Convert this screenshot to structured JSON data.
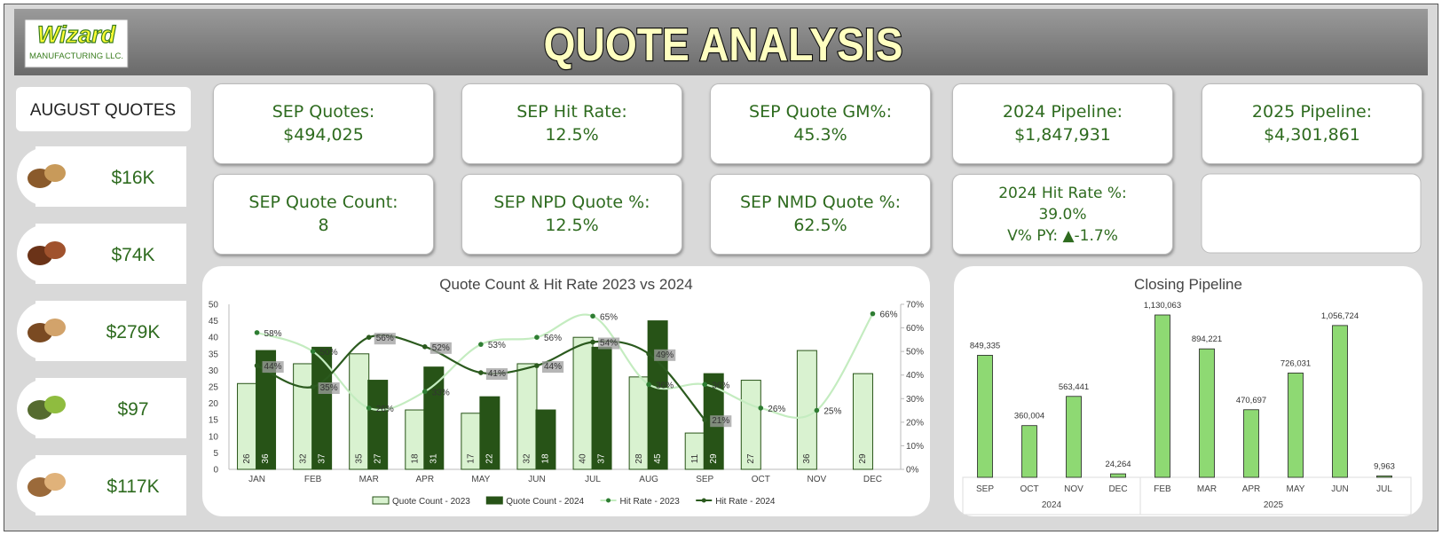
{
  "header": {
    "title": "QUOTE ANALYSIS",
    "logo_name": "Wizard",
    "logo_sub": "MANUFACTURING LLC."
  },
  "side_panel": {
    "title": "AUGUST QUOTES",
    "items": [
      "$16K",
      "$74K",
      "$279K",
      "$97",
      "$117K"
    ]
  },
  "kpis": [
    {
      "label": "SEP Quotes:",
      "value": "$494,025"
    },
    {
      "label": "SEP Hit Rate:",
      "value": "12.5%"
    },
    {
      "label": "SEP Quote GM%:",
      "value": "45.3%"
    },
    {
      "label": "2024 Pipeline:",
      "value": "$1,847,931"
    },
    {
      "label": "2025 Pipeline:",
      "value": "$4,301,861"
    },
    {
      "label": "SEP Quote Count:",
      "value": "8"
    },
    {
      "label": "SEP NPD Quote %:",
      "value": "12.5%"
    },
    {
      "label": "SEP NMD Quote %:",
      "value": "62.5%"
    },
    {
      "label": "2024 Hit Rate %:",
      "value": "39.0%",
      "note": "V% PY: ▲-1.7%"
    }
  ],
  "chart_data": [
    {
      "type": "combo",
      "title": "Quote Count & Hit Rate 2023 vs 2024",
      "categories": [
        "JAN",
        "FEB",
        "MAR",
        "APR",
        "MAY",
        "JUN",
        "JUL",
        "AUG",
        "SEP",
        "OCT",
        "NOV",
        "DEC"
      ],
      "series": [
        {
          "name": "Quote Count - 2023",
          "type": "bar",
          "color": "#d9f2d0",
          "values": [
            26,
            32,
            35,
            18,
            17,
            32,
            40,
            28,
            11,
            27,
            36,
            29
          ]
        },
        {
          "name": "Quote Count - 2024",
          "type": "bar",
          "color": "#275317",
          "values": [
            36,
            37,
            27,
            31,
            22,
            18,
            37,
            45,
            29,
            null,
            null,
            null
          ]
        },
        {
          "name": "Hit Rate - 2023",
          "type": "line",
          "axis": "y2",
          "color": "#c4ecc0",
          "values": [
            58,
            50,
            26,
            33,
            53,
            56,
            65,
            36,
            36,
            26,
            25,
            66
          ],
          "value_labels": [
            "58%",
            "50%",
            "26%",
            "33%",
            "53%",
            "56%",
            "65%",
            "36%",
            "36%",
            "26%",
            "25%",
            "66%"
          ]
        },
        {
          "name": "Hit Rate - 2024",
          "type": "line",
          "axis": "y2",
          "color": "#2b5a1e",
          "values": [
            44,
            35,
            56,
            52,
            41,
            44,
            54,
            49,
            21,
            null,
            null,
            null
          ],
          "value_labels": [
            "44%",
            "35%",
            "56%",
            "52%",
            "41%",
            "44%",
            "54%",
            "49%",
            "21%",
            null,
            null,
            null
          ]
        }
      ],
      "ylim": [
        0,
        50
      ],
      "yticks": [
        0,
        5,
        10,
        15,
        20,
        25,
        30,
        35,
        40,
        45,
        50
      ],
      "y2lim": [
        0,
        70
      ],
      "y2ticks": [
        {
          "value": 0,
          "label": "0%"
        },
        {
          "value": 10,
          "label": "10%"
        },
        {
          "value": 20,
          "label": "20%"
        },
        {
          "value": 30,
          "label": "30%"
        },
        {
          "value": 40,
          "label": "40%"
        },
        {
          "value": 50,
          "label": "50%"
        },
        {
          "value": 60,
          "label": "60%"
        },
        {
          "value": 70,
          "label": "70%"
        }
      ],
      "legend": "bottom"
    },
    {
      "type": "bar",
      "title": "Closing Pipeline",
      "color": "#8ed973",
      "groups": [
        {
          "name": "2024",
          "categories": [
            "SEP",
            "OCT",
            "NOV",
            "DEC"
          ],
          "values": [
            849335,
            360004,
            563441,
            24264
          ],
          "value_labels": [
            "849,335",
            "360,004",
            "563,441",
            "24,264"
          ]
        },
        {
          "name": "2025",
          "categories": [
            "FEB",
            "MAR",
            "APR",
            "MAY",
            "JUN",
            "JUL"
          ],
          "values": [
            1130063,
            894221,
            470697,
            726031,
            1056724,
            9963
          ],
          "value_labels": [
            "1,130,063",
            "894,221",
            "470,697",
            "726,031",
            "1,056,724",
            "9,963"
          ]
        }
      ]
    }
  ]
}
